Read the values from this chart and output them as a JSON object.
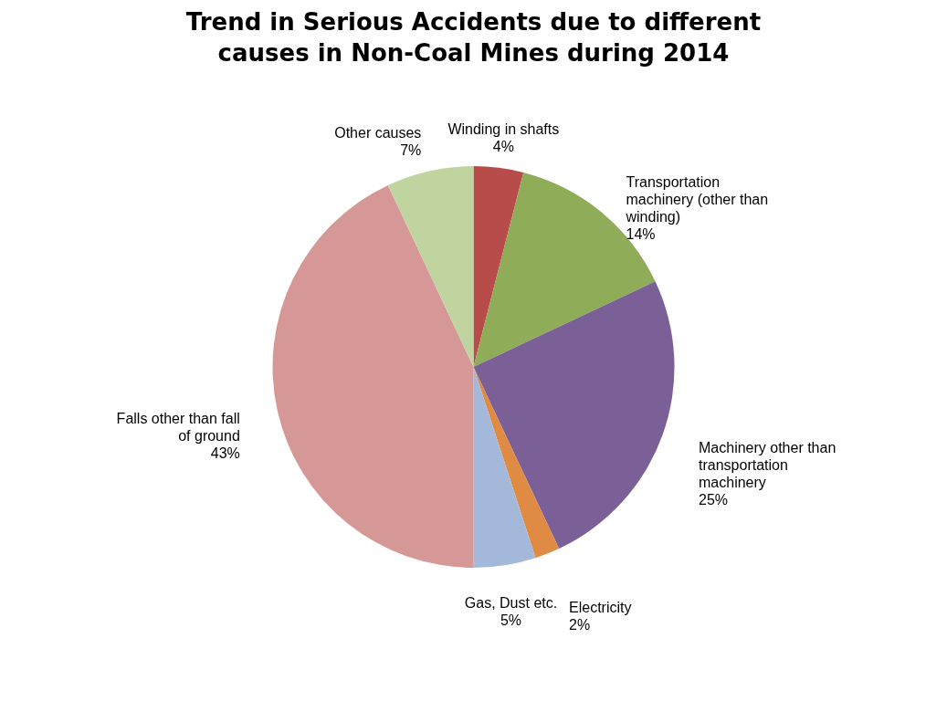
{
  "chart_data": {
    "type": "pie",
    "title": "Trend in Serious Accidents due to different causes in Non-Coal Mines during 2014",
    "categories": [
      "Winding in shafts",
      "Transportation machinery (other than winding)",
      "Machinery other than transportation machinery",
      "Electricity",
      "Gas, Dust etc.",
      "Falls other than fall of ground",
      "Other causes"
    ],
    "values": [
      4,
      14,
      25,
      2,
      5,
      43,
      7
    ],
    "value_labels": [
      "4%",
      "14%",
      "25%",
      "2%",
      "5%",
      "43%",
      "7%"
    ],
    "colors": [
      "#b84c4a",
      "#8fac58",
      "#7b6098",
      "#e08b43",
      "#a4b8da",
      "#d69896",
      "#c0d49f"
    ]
  }
}
